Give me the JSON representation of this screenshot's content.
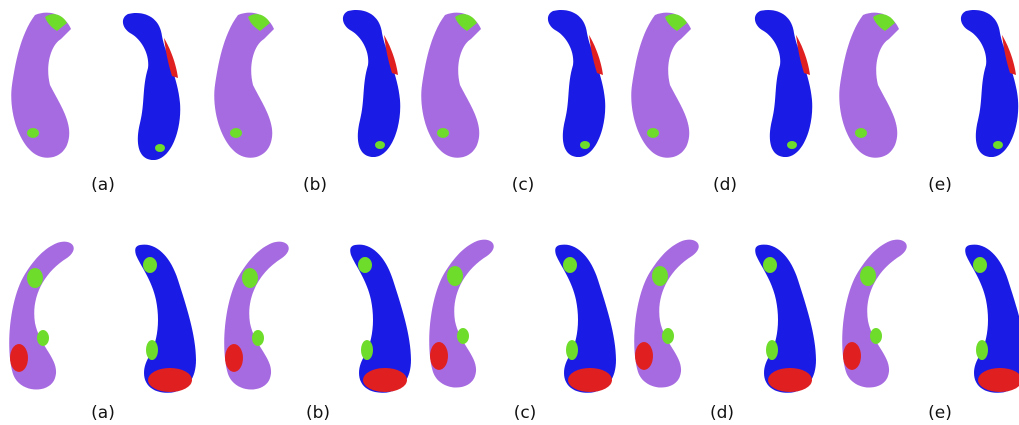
{
  "rows": [
    {
      "labels": [
        "(a)",
        "(b)",
        "(c)",
        "(d)",
        "(e)"
      ]
    },
    {
      "labels": [
        "(a)",
        "(b)",
        "(c)",
        "(d)",
        "(e)"
      ]
    }
  ]
}
